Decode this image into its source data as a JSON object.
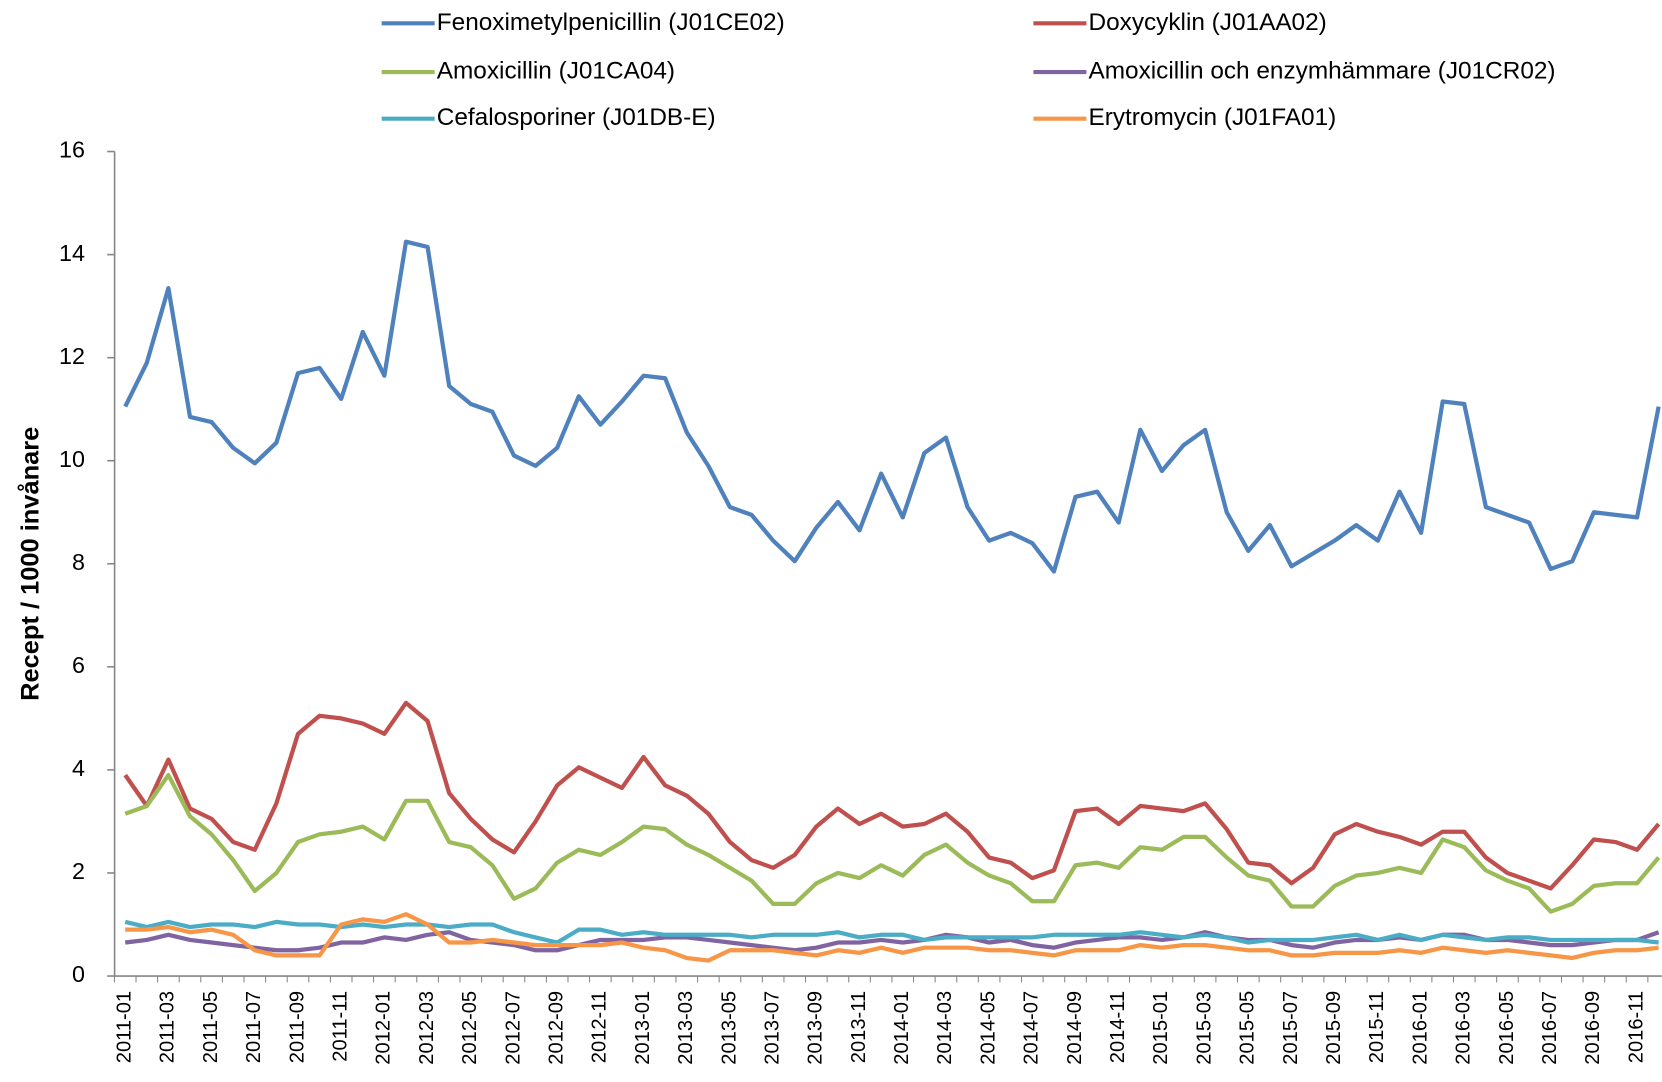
{
  "chart_data": {
    "type": "line",
    "y_label": "Recept / 1000 invånare",
    "categories": [
      "2011-01",
      null,
      "2011-03",
      null,
      "2011-05",
      null,
      "2011-07",
      null,
      "2011-09",
      null,
      "2011-11",
      null,
      "2012-01",
      null,
      "2012-03",
      null,
      "2012-05",
      null,
      "2012-07",
      null,
      "2012-09",
      null,
      "2012-11",
      null,
      "2013-01",
      null,
      "2013-03",
      null,
      "2013-05",
      null,
      "2013-07",
      null,
      "2013-09",
      null,
      "2013-11",
      null,
      "2014-01",
      null,
      "2014-03",
      null,
      "2014-05",
      null,
      "2014-07",
      null,
      "2014-09",
      null,
      "2014-11",
      null,
      "2015-01",
      null,
      "2015-03",
      null,
      "2015-05",
      null,
      "2015-07",
      null,
      "2015-09",
      null,
      "2015-11",
      null,
      "2016-01",
      null,
      "2016-03",
      null,
      "2016-05",
      null,
      "2016-07",
      null,
      "2016-09",
      null,
      "2016-11",
      null
    ],
    "ylim": [
      0,
      16
    ],
    "yticks": [
      0,
      2,
      4,
      6,
      8,
      10,
      12,
      14,
      16
    ],
    "grid": false,
    "legend": "top",
    "series": [
      {
        "name": "Fenoximetylpenicillin (J01CE02)",
        "color": "#4f81bd",
        "values": [
          11.05,
          11.9,
          13.35,
          10.85,
          10.75,
          10.25,
          9.95,
          10.35,
          11.7,
          11.8,
          11.2,
          12.5,
          11.65,
          14.25,
          14.15,
          11.45,
          11.1,
          10.95,
          10.1,
          9.9,
          10.25,
          11.25,
          10.7,
          11.15,
          11.65,
          11.6,
          10.55,
          9.9,
          9.1,
          8.95,
          8.45,
          8.05,
          8.7,
          9.2,
          8.65,
          9.75,
          8.9,
          10.15,
          10.45,
          9.1,
          8.45,
          8.6,
          8.4,
          7.85,
          9.3,
          9.4,
          8.8,
          10.6,
          9.8,
          10.3,
          10.6,
          9.0,
          8.25,
          8.75,
          7.95,
          8.2,
          8.45,
          8.75,
          8.45,
          9.4,
          8.6,
          11.15,
          11.1,
          9.1,
          8.95,
          8.8,
          7.9,
          8.05,
          9.0,
          8.95,
          8.9,
          11.05
        ]
      },
      {
        "name": "Doxycyklin (J01AA02)",
        "color": "#c0504d",
        "values": [
          3.9,
          3.3,
          4.2,
          3.25,
          3.05,
          2.6,
          2.45,
          3.35,
          4.7,
          5.05,
          5.0,
          4.9,
          4.7,
          5.3,
          4.95,
          3.55,
          3.05,
          2.65,
          2.4,
          3.0,
          3.7,
          4.05,
          3.85,
          3.65,
          4.25,
          3.7,
          3.5,
          3.15,
          2.6,
          2.25,
          2.1,
          2.35,
          2.9,
          3.25,
          2.95,
          3.15,
          2.9,
          2.95,
          3.15,
          2.8,
          2.3,
          2.2,
          1.9,
          2.05,
          3.2,
          3.25,
          2.95,
          3.3,
          3.25,
          3.2,
          3.35,
          2.85,
          2.2,
          2.15,
          1.8,
          2.1,
          2.75,
          2.95,
          2.8,
          2.7,
          2.55,
          2.8,
          2.8,
          2.3,
          2.0,
          1.85,
          1.7,
          2.15,
          2.65,
          2.6,
          2.45,
          2.95
        ]
      },
      {
        "name": "Amoxicillin (J01CA04)",
        "color": "#9bbb59",
        "values": [
          3.15,
          3.3,
          3.9,
          3.1,
          2.75,
          2.25,
          1.65,
          2.0,
          2.6,
          2.75,
          2.8,
          2.9,
          2.65,
          3.4,
          3.4,
          2.6,
          2.5,
          2.15,
          1.5,
          1.7,
          2.2,
          2.45,
          2.35,
          2.6,
          2.9,
          2.85,
          2.55,
          2.35,
          2.1,
          1.85,
          1.4,
          1.4,
          1.8,
          2.0,
          1.9,
          2.15,
          1.95,
          2.35,
          2.55,
          2.2,
          1.95,
          1.8,
          1.45,
          1.45,
          2.15,
          2.2,
          2.1,
          2.5,
          2.45,
          2.7,
          2.7,
          2.3,
          1.95,
          1.85,
          1.35,
          1.35,
          1.75,
          1.95,
          2.0,
          2.1,
          2.0,
          2.65,
          2.5,
          2.05,
          1.85,
          1.7,
          1.25,
          1.4,
          1.75,
          1.8,
          1.8,
          2.3
        ]
      },
      {
        "name": "Amoxicillin och enzymhämmare (J01CR02)",
        "color": "#8064a2",
        "values": [
          0.65,
          0.7,
          0.8,
          0.7,
          0.65,
          0.6,
          0.55,
          0.5,
          0.5,
          0.55,
          0.65,
          0.65,
          0.75,
          0.7,
          0.8,
          0.85,
          0.7,
          0.65,
          0.6,
          0.5,
          0.5,
          0.6,
          0.7,
          0.7,
          0.7,
          0.75,
          0.75,
          0.7,
          0.65,
          0.6,
          0.55,
          0.5,
          0.55,
          0.65,
          0.65,
          0.7,
          0.65,
          0.7,
          0.8,
          0.75,
          0.65,
          0.7,
          0.6,
          0.55,
          0.65,
          0.7,
          0.75,
          0.75,
          0.7,
          0.75,
          0.85,
          0.75,
          0.7,
          0.7,
          0.6,
          0.55,
          0.65,
          0.7,
          0.7,
          0.75,
          0.7,
          0.8,
          0.8,
          0.7,
          0.7,
          0.65,
          0.6,
          0.6,
          0.65,
          0.7,
          0.7,
          0.85
        ]
      },
      {
        "name": "Cefalosporiner (J01DB-E)",
        "color": "#4bacc6",
        "values": [
          1.05,
          0.95,
          1.05,
          0.95,
          1.0,
          1.0,
          0.95,
          1.05,
          1.0,
          1.0,
          0.95,
          1.0,
          0.95,
          1.0,
          1.0,
          0.95,
          1.0,
          1.0,
          0.85,
          0.75,
          0.65,
          0.9,
          0.9,
          0.8,
          0.85,
          0.8,
          0.8,
          0.8,
          0.8,
          0.75,
          0.8,
          0.8,
          0.8,
          0.85,
          0.75,
          0.8,
          0.8,
          0.7,
          0.75,
          0.75,
          0.75,
          0.75,
          0.75,
          0.8,
          0.8,
          0.8,
          0.8,
          0.85,
          0.8,
          0.75,
          0.8,
          0.75,
          0.65,
          0.7,
          0.7,
          0.7,
          0.75,
          0.8,
          0.7,
          0.8,
          0.7,
          0.8,
          0.75,
          0.7,
          0.75,
          0.75,
          0.7,
          0.7,
          0.7,
          0.7,
          0.7,
          0.65
        ]
      },
      {
        "name": "Erytromycin (J01FA01)",
        "color": "#f79646",
        "values": [
          0.9,
          0.9,
          0.95,
          0.85,
          0.9,
          0.8,
          0.5,
          0.4,
          0.4,
          0.4,
          1.0,
          1.1,
          1.05,
          1.2,
          1.0,
          0.65,
          0.65,
          0.7,
          0.65,
          0.6,
          0.6,
          0.6,
          0.6,
          0.65,
          0.55,
          0.5,
          0.35,
          0.3,
          0.5,
          0.5,
          0.5,
          0.45,
          0.4,
          0.5,
          0.45,
          0.55,
          0.45,
          0.55,
          0.55,
          0.55,
          0.5,
          0.5,
          0.45,
          0.4,
          0.5,
          0.5,
          0.5,
          0.6,
          0.55,
          0.6,
          0.6,
          0.55,
          0.5,
          0.5,
          0.4,
          0.4,
          0.45,
          0.45,
          0.45,
          0.5,
          0.45,
          0.55,
          0.5,
          0.45,
          0.5,
          0.45,
          0.4,
          0.35,
          0.45,
          0.5,
          0.5,
          0.55
        ]
      }
    ]
  }
}
